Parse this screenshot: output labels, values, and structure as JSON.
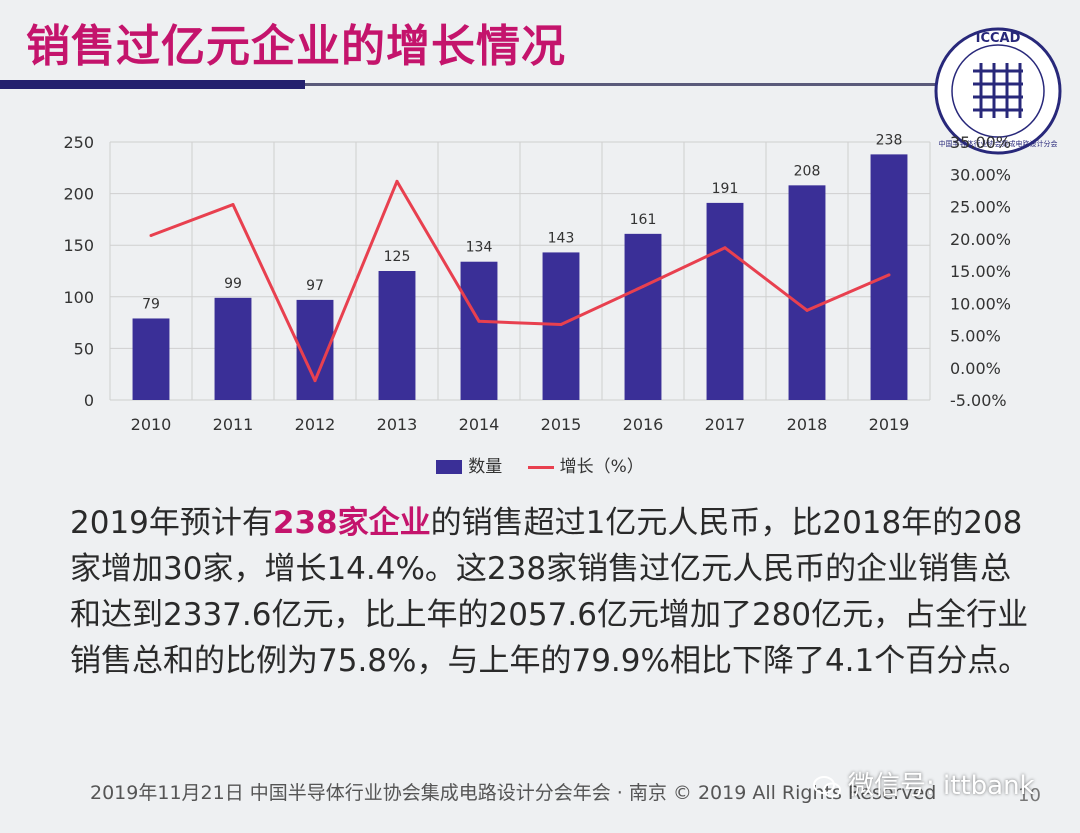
{
  "slide": {
    "title": "销售过亿元企业的增长情况",
    "logo_text": "ICCAD",
    "logo_subtext": "中国半导体行业协会集成电路设计分会"
  },
  "chart_data": {
    "type": "bar",
    "categories": [
      "2010",
      "2011",
      "2012",
      "2013",
      "2014",
      "2015",
      "2016",
      "2017",
      "2018",
      "2019"
    ],
    "series": [
      {
        "name": "数量",
        "type": "bar",
        "axis": "left",
        "values": [
          79,
          99,
          97,
          125,
          134,
          143,
          161,
          191,
          208,
          238
        ]
      },
      {
        "name": "增长（%）",
        "type": "line",
        "axis": "right",
        "values": [
          20.5,
          25.3,
          -2.0,
          28.9,
          7.2,
          6.7,
          12.6,
          18.6,
          8.9,
          14.4
        ]
      }
    ],
    "bar_labels": [
      "79",
      "99",
      "97",
      "125",
      "134",
      "143",
      "161",
      "191",
      "208",
      "238"
    ],
    "left_ticks": [
      "0",
      "50",
      "100",
      "150",
      "200",
      "250"
    ],
    "left_ylim": [
      0,
      250
    ],
    "right_ticks": [
      "-5.00%",
      "0.00%",
      "5.00%",
      "10.00%",
      "15.00%",
      "20.00%",
      "25.00%",
      "30.00%",
      "35.00%"
    ],
    "right_ylim": [
      -5,
      35
    ],
    "grid": true,
    "legend_position": "bottom",
    "colors": {
      "bar": "#3a2f97",
      "line": "#e8404f",
      "grid": "#cfcfcf"
    }
  },
  "legend": {
    "bar_label": "数量",
    "line_label": "增长（%）"
  },
  "body": {
    "p1_a": "2019年预计有",
    "p1_highlight": "238家企业",
    "p1_b": "的销售超过1亿元人民币，比2018年的208家增加30家，增长14.4%。这238家销售过亿元人民币的企业销售总和达到2337.6亿元，比上年的2057.6亿元增加了280亿元，占全行业销售总和的比例为75.8%，与上年的79.9%相比下降了4.1个百分点。"
  },
  "footer": {
    "text": "2019年11月21日  中国半导体行业协会集成电路设计分会年会 · 南京 © 2019 All Rights Reserved",
    "page": "10",
    "watermark": "微信号: ittbank"
  }
}
